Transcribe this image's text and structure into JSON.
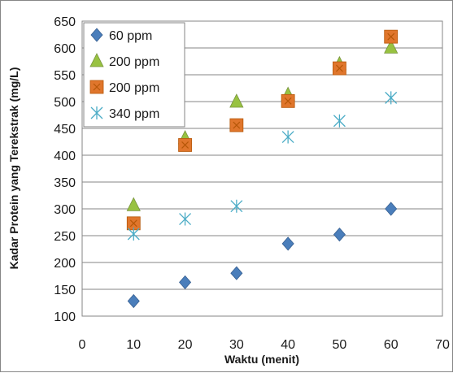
{
  "chart_data": {
    "type": "scatter",
    "title": "",
    "xlabel": "Waktu (menit)",
    "ylabel": "Kadar  Protein yang Terekstrak (mg/L)",
    "xlim": [
      0,
      70
    ],
    "ylim": [
      100,
      650
    ],
    "x_ticks": [
      0,
      10,
      20,
      30,
      40,
      50,
      60,
      70
    ],
    "y_ticks": [
      100,
      150,
      200,
      250,
      300,
      350,
      400,
      450,
      500,
      550,
      600,
      650
    ],
    "grid": "horizontal",
    "legend_position": "top-left",
    "series": [
      {
        "name": "60 ppm",
        "marker": "diamond",
        "color": "#4a7ebb",
        "x": [
          10,
          20,
          30,
          40,
          50,
          60
        ],
        "y": [
          128,
          163,
          180,
          235,
          252,
          300
        ]
      },
      {
        "name": "200 ppm",
        "marker": "triangle",
        "color": "#98c241",
        "x": [
          10,
          20,
          30,
          40,
          50,
          60
        ],
        "y": [
          307,
          432,
          500,
          513,
          570,
          601
        ]
      },
      {
        "name": "200 ppm",
        "marker": "square",
        "color": "#e0762c",
        "x": [
          10,
          20,
          30,
          40,
          50,
          60
        ],
        "y": [
          273,
          419,
          456,
          501,
          562,
          621
        ]
      },
      {
        "name": "340 ppm",
        "marker": "star",
        "color": "#4bacc6",
        "x": [
          10,
          20,
          30,
          40,
          50,
          60
        ],
        "y": [
          253,
          281,
          305,
          434,
          464,
          507
        ]
      }
    ]
  }
}
